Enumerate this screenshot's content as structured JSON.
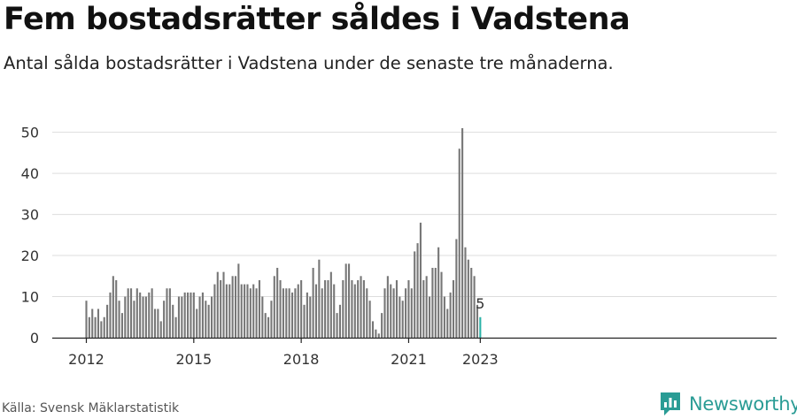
{
  "title": "Fem bostadsrätter såldes i Vadstena",
  "subtitle": "Antal sålda bostadsrätter i Vadstena under de senaste tre månaderna.",
  "source": "Källa: Svensk Mäklarstatistik",
  "brand": {
    "name": "Newsworthy",
    "icon": "newsworthy-logo-icon",
    "color": "#2a9c95"
  },
  "chart_data": {
    "type": "bar",
    "x_start": "2012-01",
    "x_ticks": [
      "2012",
      "2015",
      "2018",
      "2021",
      "2023"
    ],
    "y_ticks": [
      "0",
      "10",
      "20",
      "30",
      "40",
      "50"
    ],
    "ylim": [
      0,
      52
    ],
    "grid": true,
    "bar_color": "#777777",
    "highlight_color": "#2bb3a8",
    "highlight_label": "5",
    "series": [
      {
        "values": [
          9,
          5,
          7,
          5,
          7,
          4,
          5,
          8,
          11,
          15,
          14,
          9,
          6,
          10,
          12,
          12,
          9,
          12,
          11,
          10,
          10,
          11,
          12,
          7,
          7,
          4,
          9,
          12,
          12,
          8,
          5,
          10,
          10,
          11,
          11,
          11,
          11,
          7,
          10,
          11,
          9,
          8,
          10,
          13,
          16,
          14,
          16,
          13,
          13,
          15,
          15,
          18,
          13,
          13,
          13,
          12,
          13,
          12,
          14,
          10,
          6,
          5,
          9,
          15,
          17,
          14,
          12,
          12,
          12,
          11,
          12,
          13,
          14,
          8,
          11,
          10,
          17,
          13,
          19,
          12,
          14,
          14,
          16,
          13,
          6,
          8,
          14,
          18,
          18,
          14,
          13,
          14,
          15,
          14,
          12,
          9,
          4,
          2,
          1,
          6,
          12,
          15,
          13,
          12,
          14,
          10,
          9,
          12,
          14,
          12,
          21,
          23,
          28,
          14,
          15,
          10,
          17,
          17,
          22,
          16,
          10,
          7,
          11,
          14,
          24,
          46,
          51,
          22,
          19,
          17,
          15,
          8,
          5
        ]
      }
    ]
  }
}
